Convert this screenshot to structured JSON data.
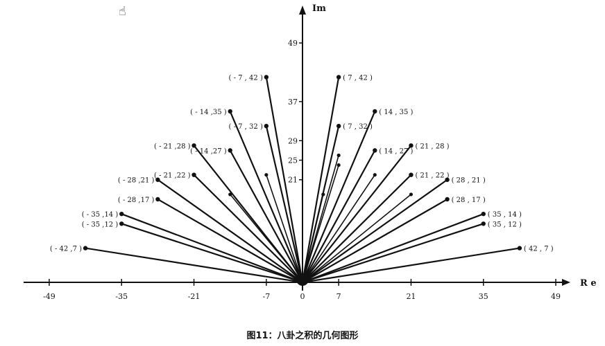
{
  "chart_data": {
    "type": "scatter",
    "title": "",
    "caption": "图11：八卦之积的几何图形",
    "xlabel": "R e",
    "ylabel": "Im",
    "xlim": [
      -50,
      54
    ],
    "ylim": [
      0,
      56
    ],
    "x_ticks": [
      -49,
      -35,
      -21,
      -7,
      0,
      7,
      21,
      35,
      49
    ],
    "x_tick_labels": [
      "-49",
      "-35",
      "-21",
      "-7",
      "0",
      "7",
      "21",
      "35",
      "49"
    ],
    "y_ticks": [
      49,
      37,
      29,
      25,
      21
    ],
    "y_tick_labels": [
      "49",
      "37",
      "29",
      "25",
      "21"
    ],
    "points": [
      {
        "x": -42,
        "y": 7,
        "label": "( - 42 ,7 )"
      },
      {
        "x": -35,
        "y": 12,
        "label": "( - 35 ,12 )"
      },
      {
        "x": -35,
        "y": 14,
        "label": "( - 35 ,14 )"
      },
      {
        "x": -28,
        "y": 17,
        "label": "( - 28 ,17 )"
      },
      {
        "x": -28,
        "y": 21,
        "label": "( - 28 ,21 )"
      },
      {
        "x": -21,
        "y": 22,
        "label": "( - 21 ,22 )"
      },
      {
        "x": -21,
        "y": 28,
        "label": "( - 21 ,28 )"
      },
      {
        "x": -14,
        "y": 27,
        "label": "( - 14 ,27 )"
      },
      {
        "x": -14,
        "y": 35,
        "label": "( - 14 ,35 )"
      },
      {
        "x": -7,
        "y": 32,
        "label": "( - 7 , 32 )"
      },
      {
        "x": -7,
        "y": 42,
        "label": "( - 7 , 42 )"
      },
      {
        "x": 7,
        "y": 42,
        "label": "( 7 , 42 )"
      },
      {
        "x": 7,
        "y": 32,
        "label": "( 7 , 32 )"
      },
      {
        "x": 14,
        "y": 35,
        "label": "( 14 , 35 )"
      },
      {
        "x": 14,
        "y": 27,
        "label": "( 14 , 27 )"
      },
      {
        "x": 21,
        "y": 28,
        "label": "( 21 , 28 )"
      },
      {
        "x": 21,
        "y": 22,
        "label": "( 21 , 22 )"
      },
      {
        "x": 28,
        "y": 21,
        "label": "( 28 , 21 )"
      },
      {
        "x": 28,
        "y": 17,
        "label": "( 28 , 17 )"
      },
      {
        "x": 35,
        "y": 14,
        "label": "( 35 , 14 )"
      },
      {
        "x": 35,
        "y": 12,
        "label": "( 35 , 12 )"
      },
      {
        "x": 42,
        "y": 7,
        "label": "( 42 , 7 )"
      }
    ],
    "inner_points": [
      {
        "x": -14,
        "y": 18
      },
      {
        "x": -7,
        "y": 22
      },
      {
        "x": 4,
        "y": 18
      },
      {
        "x": 7,
        "y": 24
      },
      {
        "x": 7,
        "y": 26
      },
      {
        "x": 14,
        "y": 22
      },
      {
        "x": 21,
        "y": 18
      }
    ],
    "grid": false,
    "legend": "none",
    "colors": {
      "line": "#111111",
      "point": "#111111",
      "background": "#ffffff"
    }
  },
  "icons": {
    "cursor": "hand-cursor-icon"
  }
}
